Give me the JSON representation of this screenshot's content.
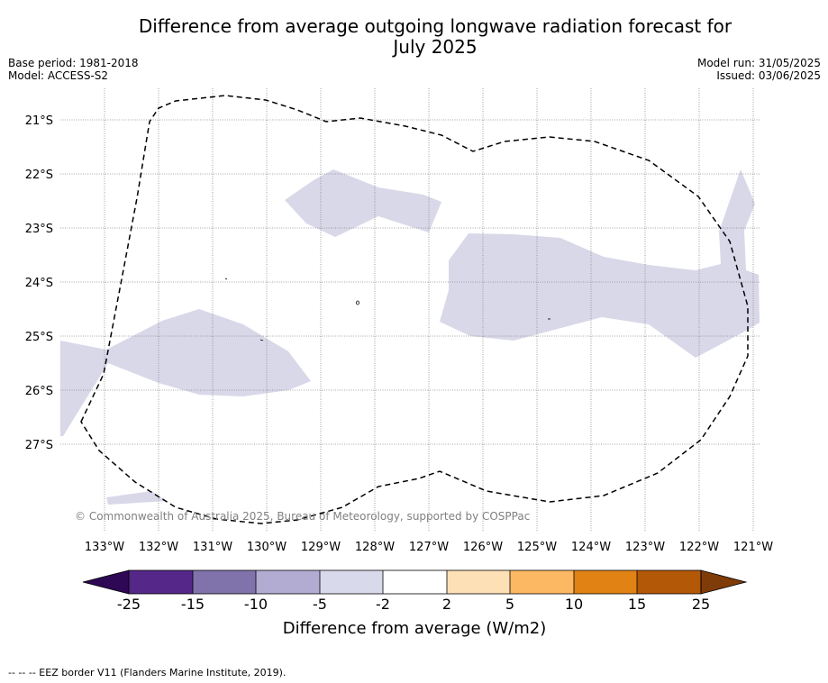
{
  "header": {
    "title_line1": "Difference from average outgoing longwave radiation forecast for",
    "title_line2": "July 2025",
    "base_period": "Base period: 1981-2018",
    "model": "Model: ACCESS-S2",
    "model_run": "Model run: 31/05/2025",
    "issued": "Issued: 03/06/2025"
  },
  "map": {
    "copyright": "© Commonwealth of Australia 2025, Bureau of Meteorology, supported by COSPPac",
    "lat_labels": [
      "21°S",
      "22°S",
      "23°S",
      "24°S",
      "25°S",
      "26°S",
      "27°S"
    ],
    "lon_labels": [
      "133°W",
      "132°W",
      "131°W",
      "130°W",
      "129°W",
      "128°W",
      "127°W",
      "126°W",
      "125°W",
      "124°W",
      "123°W",
      "122°W",
      "121°W"
    ],
    "anomaly_fill_color": "#d8d8e9",
    "eez_border_color": "#000000"
  },
  "colorbar": {
    "tick_labels": [
      "-25",
      "-15",
      "-10",
      "-5",
      "-2",
      "2",
      "5",
      "10",
      "15",
      "25"
    ],
    "colors": [
      "#2e0854",
      "#542788",
      "#8073ac",
      "#b2abd2",
      "#d8daeb",
      "#ffffff",
      "#fee0b6",
      "#fdb863",
      "#e08214",
      "#b35806",
      "#7f3b08"
    ],
    "label": "Difference from average (W/m2)"
  },
  "footer": {
    "eez_note": "--  --  -- EEZ border V11 (Flanders Marine Institute, 2019)."
  }
}
